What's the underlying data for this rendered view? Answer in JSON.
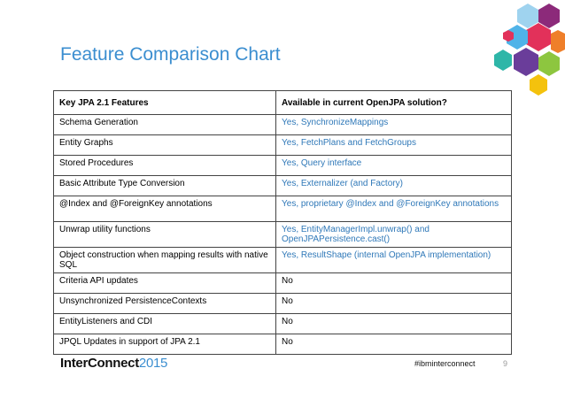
{
  "header": {
    "title": "Feature Comparison Chart"
  },
  "table": {
    "header": [
      "Key JPA 2.1 Features",
      "Available in current OpenJPA solution?"
    ],
    "rows": [
      [
        "Schema Generation",
        "Yes, SynchronizeMappings"
      ],
      [
        "Entity Graphs",
        "Yes, FetchPlans and FetchGroups"
      ],
      [
        "Stored Procedures",
        "Yes, Query interface"
      ],
      [
        "Basic Attribute Type Conversion",
        "Yes, Externalizer (and Factory)"
      ],
      [
        "@Index and @ForeignKey annotations",
        "Yes, proprietary @Index and @ForeignKey annotations"
      ],
      [
        "Unwrap utility functions",
        "Yes, EntityManagerImpl.unwrap() and OpenJPAPersistence.cast()"
      ],
      [
        "Object construction when mapping results with native SQL",
        "Yes, ResultShape (internal OpenJPA implementation)"
      ],
      [
        "Criteria API updates",
        "No"
      ],
      [
        "Unsynchronized PersistenceContexts",
        "No"
      ],
      [
        "EntityListeners and CDI",
        "No"
      ],
      [
        "JPQL Updates in support of JPA 2.1",
        "No"
      ]
    ]
  },
  "footer": {
    "brand": "InterConnect",
    "year": "2015",
    "hashtag": "#ibminterconnect",
    "page": "9"
  }
}
